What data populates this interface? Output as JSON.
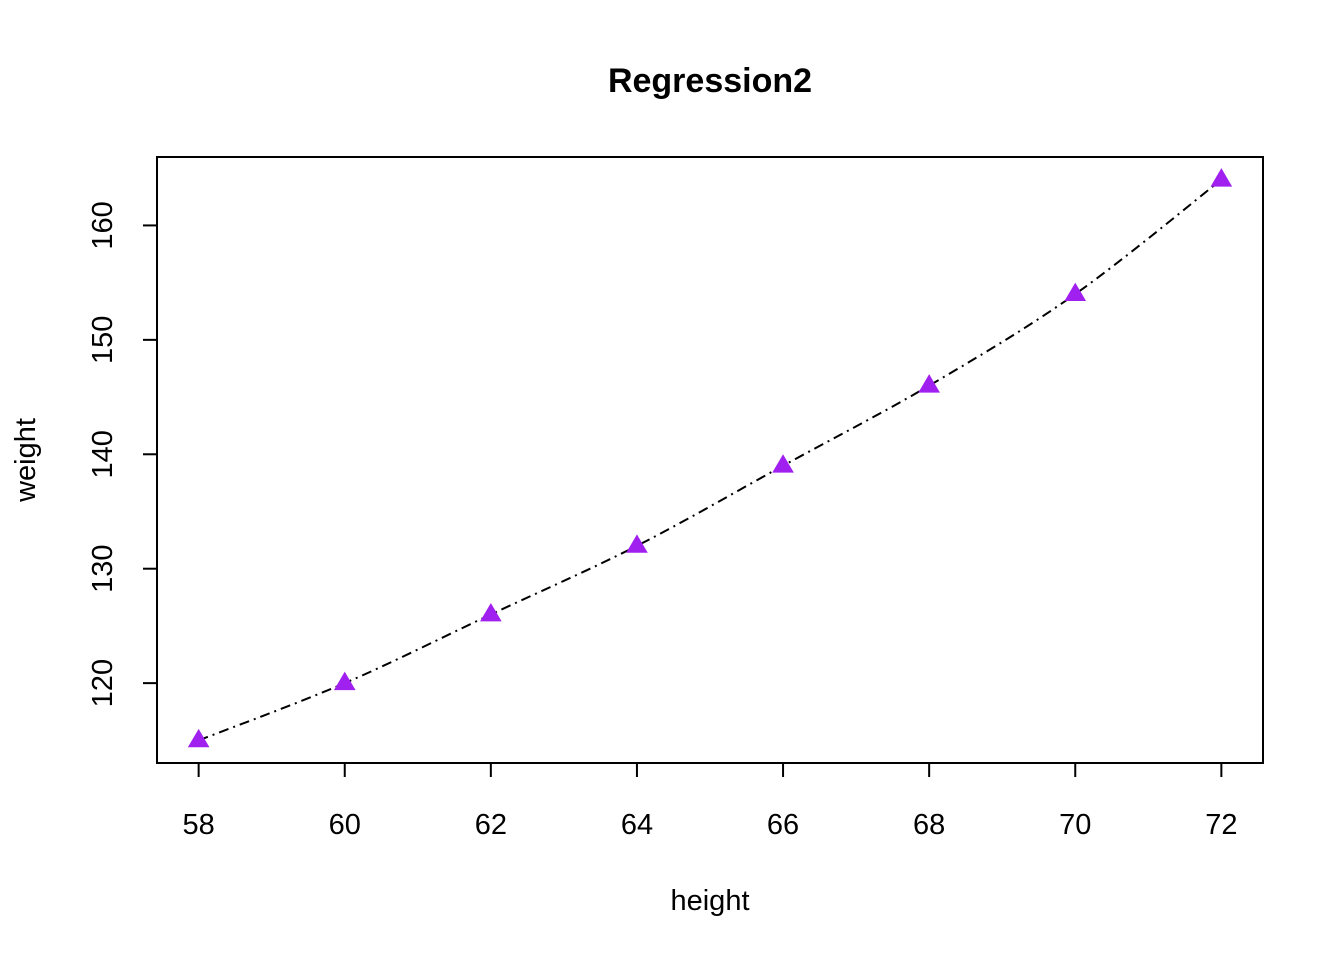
{
  "chart_data": {
    "type": "scatter",
    "title": "Regression2",
    "xlabel": "height",
    "ylabel": "weight",
    "xlim": [
      57.43,
      72.57
    ],
    "ylim": [
      113.02,
      165.98
    ],
    "x_ticks": [
      58,
      60,
      62,
      64,
      66,
      68,
      70,
      72
    ],
    "y_ticks": [
      120,
      130,
      140,
      150,
      160
    ],
    "grid": false,
    "legend": "none",
    "series": [
      {
        "x": [
          58,
          60,
          62,
          64,
          66,
          68,
          70,
          72
        ],
        "y": [
          115,
          120,
          126,
          132,
          139,
          146,
          154,
          164
        ],
        "marker": "triangle",
        "marker_color": "#A020F0",
        "line": "smooth-dotdash",
        "line_color": "#000000"
      }
    ]
  }
}
